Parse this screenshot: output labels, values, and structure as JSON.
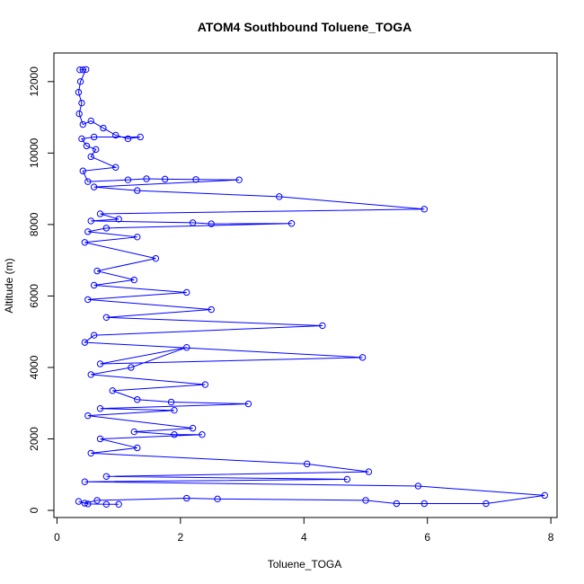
{
  "chart_data": {
    "type": "line",
    "title": "ATOM4 Southbound Toluene_TOGA",
    "xlabel": "Toluene_TOGA",
    "ylabel": "Altitude (m)",
    "xlim": [
      -0.05,
      8.1
    ],
    "ylim": [
      -200,
      12800
    ],
    "xticks": [
      0,
      2,
      4,
      6,
      8
    ],
    "yticks": [
      0,
      2000,
      4000,
      6000,
      8000,
      10000,
      12000
    ],
    "grid": false,
    "legend": "none",
    "markers": "open-circle",
    "series": [
      {
        "color": "#0000ff",
        "points": [
          [
            0.37,
            12330
          ],
          [
            0.42,
            12330
          ],
          [
            0.47,
            12340
          ],
          [
            0.38,
            12000
          ],
          [
            0.35,
            11700
          ],
          [
            0.4,
            11400
          ],
          [
            0.36,
            11100
          ],
          [
            0.42,
            10800
          ],
          [
            0.55,
            10900
          ],
          [
            0.75,
            10700
          ],
          [
            0.95,
            10500
          ],
          [
            1.15,
            10400
          ],
          [
            1.35,
            10450
          ],
          [
            0.6,
            10450
          ],
          [
            0.4,
            10400
          ],
          [
            0.48,
            10200
          ],
          [
            0.63,
            10100
          ],
          [
            0.55,
            9900
          ],
          [
            0.95,
            9600
          ],
          [
            0.42,
            9500
          ],
          [
            0.5,
            9200
          ],
          [
            1.15,
            9250
          ],
          [
            1.45,
            9280
          ],
          [
            1.75,
            9270
          ],
          [
            2.25,
            9260
          ],
          [
            2.95,
            9250
          ],
          [
            0.6,
            9050
          ],
          [
            1.3,
            8950
          ],
          [
            3.6,
            8780
          ],
          [
            5.95,
            8430
          ],
          [
            0.7,
            8300
          ],
          [
            1.0,
            8150
          ],
          [
            0.55,
            8100
          ],
          [
            2.2,
            8050
          ],
          [
            2.5,
            8020
          ],
          [
            3.8,
            8030
          ],
          [
            0.8,
            7900
          ],
          [
            0.5,
            7800
          ],
          [
            1.3,
            7650
          ],
          [
            0.45,
            7500
          ],
          [
            1.6,
            7050
          ],
          [
            0.65,
            6700
          ],
          [
            1.25,
            6450
          ],
          [
            0.6,
            6300
          ],
          [
            2.1,
            6100
          ],
          [
            0.5,
            5900
          ],
          [
            2.5,
            5620
          ],
          [
            0.8,
            5400
          ],
          [
            4.3,
            5170
          ],
          [
            0.6,
            4900
          ],
          [
            0.45,
            4700
          ],
          [
            4.95,
            4280
          ],
          [
            0.7,
            4100
          ],
          [
            2.1,
            4560
          ],
          [
            1.2,
            4000
          ],
          [
            0.55,
            3800
          ],
          [
            2.4,
            3520
          ],
          [
            0.9,
            3350
          ],
          [
            1.3,
            3100
          ],
          [
            1.85,
            3030
          ],
          [
            3.1,
            2980
          ],
          [
            0.7,
            2850
          ],
          [
            1.9,
            2800
          ],
          [
            0.5,
            2650
          ],
          [
            2.2,
            2300
          ],
          [
            1.25,
            2200
          ],
          [
            1.9,
            2120
          ],
          [
            2.35,
            2120
          ],
          [
            0.7,
            2000
          ],
          [
            1.3,
            1750
          ],
          [
            0.55,
            1600
          ],
          [
            4.05,
            1300
          ],
          [
            5.05,
            1080
          ],
          [
            0.8,
            950
          ],
          [
            4.7,
            870
          ],
          [
            0.45,
            800
          ],
          [
            5.85,
            680
          ],
          [
            7.9,
            420
          ],
          [
            6.95,
            190
          ],
          [
            5.95,
            190
          ],
          [
            5.5,
            190
          ],
          [
            5.0,
            280
          ],
          [
            2.6,
            320
          ],
          [
            2.1,
            340
          ],
          [
            0.65,
            280
          ],
          [
            0.45,
            200
          ],
          [
            0.35,
            250
          ],
          [
            0.5,
            180
          ],
          [
            0.8,
            170
          ],
          [
            1.0,
            170
          ]
        ]
      }
    ]
  }
}
